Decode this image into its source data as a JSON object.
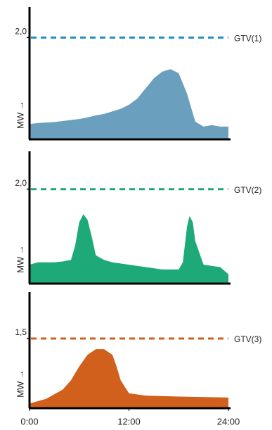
{
  "chart_data": [
    {
      "type": "area",
      "y_label": "MW →",
      "color": "#6b9fbe",
      "x": [
        0,
        1,
        2,
        3,
        4,
        5,
        6,
        7,
        8,
        9,
        10,
        11,
        12,
        13,
        14,
        15,
        16,
        17,
        18,
        19,
        20,
        21,
        22,
        23,
        24
      ],
      "values": [
        0.3,
        0.32,
        0.33,
        0.34,
        0.36,
        0.38,
        0.4,
        0.43,
        0.47,
        0.5,
        0.55,
        0.6,
        0.68,
        0.8,
        1.0,
        1.2,
        1.33,
        1.38,
        1.3,
        0.9,
        0.35,
        0.25,
        0.28,
        0.25,
        0.25
      ],
      "xlim": [
        0,
        24
      ],
      "ylim": [
        0,
        2.6
      ],
      "yticks": [
        {
          "value": 2.0,
          "label": "2,0"
        }
      ],
      "threshold": {
        "value": 2.0,
        "label": "GTV(1)",
        "color": "#1f8fc6"
      }
    },
    {
      "type": "area",
      "y_label": "MW →",
      "color": "#1eaa78",
      "x": [
        0,
        1,
        2,
        3,
        4,
        5,
        5.5,
        6,
        6.5,
        7,
        7.5,
        8,
        9,
        10,
        12,
        14,
        16,
        18,
        18.5,
        19,
        19.3,
        19.7,
        20,
        21,
        23,
        24
      ],
      "values": [
        0.4,
        0.45,
        0.45,
        0.45,
        0.47,
        0.5,
        0.8,
        1.3,
        1.47,
        1.35,
        1.0,
        0.6,
        0.5,
        0.45,
        0.4,
        0.35,
        0.3,
        0.3,
        0.45,
        1.2,
        1.43,
        1.3,
        0.9,
        0.4,
        0.35,
        0.2
      ],
      "xlim": [
        0,
        24
      ],
      "ylim": [
        0,
        2.8
      ],
      "yticks": [
        {
          "value": 2.0,
          "label": "2,0"
        }
      ],
      "threshold": {
        "value": 2.0,
        "label": "GTV(2)",
        "color": "#1eaa78"
      }
    },
    {
      "type": "area",
      "y_label": "MW →",
      "color": "#d0601c",
      "x": [
        0,
        2,
        4,
        5,
        6,
        7,
        8,
        9,
        10,
        10.5,
        11,
        12,
        14,
        18,
        24
      ],
      "values": [
        0.1,
        0.2,
        0.4,
        0.6,
        0.9,
        1.15,
        1.27,
        1.27,
        1.15,
        0.9,
        0.6,
        0.32,
        0.27,
        0.25,
        0.23
      ],
      "xlim": [
        0,
        24
      ],
      "ylim": [
        0,
        2.5
      ],
      "yticks": [
        {
          "value": 1.5,
          "label": "1,5"
        }
      ],
      "threshold": {
        "value": 1.5,
        "label": "GTV(3)",
        "color": "#d0601c"
      },
      "xticks": [
        {
          "value": 0,
          "label": "0:00"
        },
        {
          "value": 12,
          "label": "12:00"
        },
        {
          "value": 24,
          "label": "24:00"
        }
      ]
    }
  ]
}
